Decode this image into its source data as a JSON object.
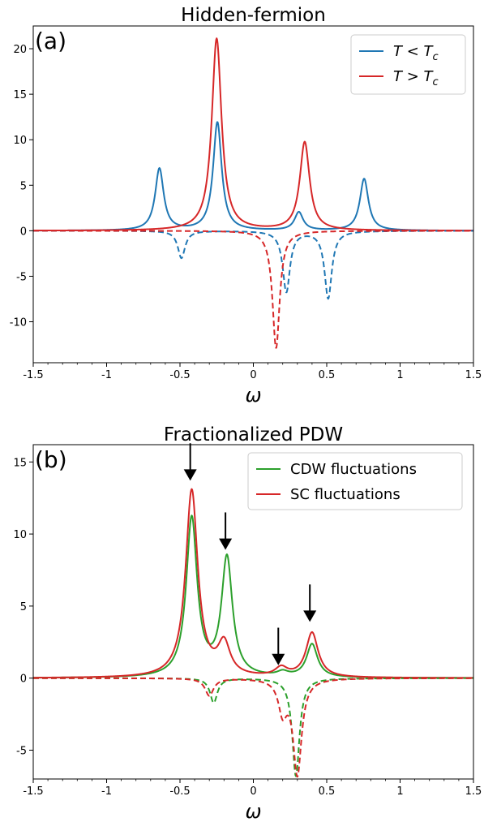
{
  "chart_data": [
    {
      "type": "line",
      "title": "Hidden-fermion",
      "panel_label": "(a)",
      "xlabel": "ω",
      "ylabel": "",
      "xlim": [
        -1.5,
        1.5
      ],
      "ylim": [
        -14.5,
        22.5
      ],
      "xticks": [
        -1.5,
        -1,
        -0.5,
        0,
        0.5,
        1,
        1.5
      ],
      "xtick_labels": [
        "-1.5",
        "-1",
        "-0.5",
        "0",
        "0.5",
        "1",
        "1.5"
      ],
      "yticks": [
        -10,
        -5,
        0,
        5,
        10,
        15,
        20
      ],
      "ytick_labels": [
        "-10",
        "-5",
        "0",
        "5",
        "10",
        "15",
        "20"
      ],
      "legend_position": "top-right",
      "grid": false,
      "series": [
        {
          "name": "T < T_c",
          "legend": {
            "base": "T < T",
            "sub": "c"
          },
          "color": "#1f77b4",
          "style": "solid",
          "gamma": 0.035,
          "peaks": [
            {
              "x": -0.64,
              "y": 6.8
            },
            {
              "x": -0.245,
              "y": 11.9
            },
            {
              "x": 0.31,
              "y": 2.0
            },
            {
              "x": 0.755,
              "y": 5.7
            }
          ]
        },
        {
          "name": "T > T_c",
          "legend": {
            "base": "T > T",
            "sub": "c"
          },
          "color": "#d62728",
          "style": "solid",
          "gamma": 0.04,
          "peaks": [
            {
              "x": -0.25,
              "y": 21.1
            },
            {
              "x": 0.35,
              "y": 9.7
            }
          ]
        },
        {
          "name": "",
          "color": "#1f77b4",
          "style": "dashed",
          "gamma": 0.03,
          "peaks": [
            {
              "x": -0.49,
              "y": -3.0
            },
            {
              "x": 0.225,
              "y": -6.7
            },
            {
              "x": 0.51,
              "y": -7.4
            }
          ]
        },
        {
          "name": "",
          "color": "#d62728",
          "style": "dashed",
          "gamma": 0.03,
          "peaks": [
            {
              "x": 0.155,
              "y": -12.9
            }
          ]
        }
      ]
    },
    {
      "type": "line",
      "title": "Fractionalized PDW",
      "panel_label": "(b)",
      "xlabel": "ω",
      "ylabel": "",
      "xlim": [
        -1.5,
        1.5
      ],
      "ylim": [
        -7,
        16.2
      ],
      "xticks": [
        -1.5,
        -1,
        -0.5,
        0,
        0.5,
        1,
        1.5
      ],
      "xtick_labels": [
        "-1.5",
        "-1",
        "-0.5",
        "0",
        "0.5",
        "1",
        "1.5"
      ],
      "yticks": [
        -5,
        0,
        5,
        10,
        15
      ],
      "ytick_labels": [
        "-5",
        "0",
        "5",
        "10",
        "15"
      ],
      "legend_position": "top-right",
      "grid": false,
      "series": [
        {
          "name": "CDW fluctuations",
          "color": "#2ca02c",
          "style": "solid",
          "gamma": 0.045,
          "peaks": [
            {
              "x": -0.42,
              "y": 11.0
            },
            {
              "x": -0.18,
              "y": 8.2
            },
            {
              "x": 0.2,
              "y": 0.3
            },
            {
              "x": 0.4,
              "y": 2.3
            }
          ]
        },
        {
          "name": "SC fluctuations",
          "color": "#d62728",
          "style": "solid",
          "gamma": 0.05,
          "peaks": [
            {
              "x": -0.42,
              "y": 13.0
            },
            {
              "x": -0.2,
              "y": 2.2
            },
            {
              "x": 0.19,
              "y": 0.6
            },
            {
              "x": 0.4,
              "y": 3.1
            }
          ]
        },
        {
          "name": "",
          "color": "#2ca02c",
          "style": "dashed",
          "gamma": 0.03,
          "peaks": [
            {
              "x": -0.27,
              "y": -1.7
            },
            {
              "x": 0.29,
              "y": -6.8
            }
          ]
        },
        {
          "name": "",
          "color": "#d62728",
          "style": "dashed",
          "gamma": 0.035,
          "peaks": [
            {
              "x": -0.3,
              "y": -1.2
            },
            {
              "x": 0.2,
              "y": -2.2
            },
            {
              "x": 0.3,
              "y": -6.6
            }
          ]
        }
      ],
      "arrows": [
        {
          "x": -0.43,
          "y_top": 16.3,
          "y_tip": 13.7
        },
        {
          "x": -0.19,
          "y_top": 11.5,
          "y_tip": 8.9
        },
        {
          "x": 0.17,
          "y_top": 3.5,
          "y_tip": 0.9
        },
        {
          "x": 0.385,
          "y_top": 6.5,
          "y_tip": 3.9
        }
      ]
    }
  ]
}
